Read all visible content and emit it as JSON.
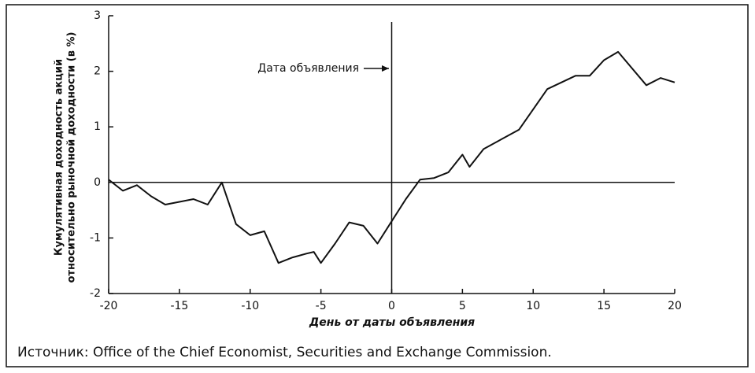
{
  "chart_data": {
    "type": "line",
    "y_label": [
      "Кумулятивная доходность акций",
      "относительно рыночной доходности (в %)"
    ],
    "x_label": "День от даты объявления",
    "annotation": "Дата объявления",
    "source": "Источник: Office of the Chief Economist, Securities and Exchange Commission.",
    "series": [
      {
        "color": "#111111",
        "x": [
          -20,
          -19,
          -18,
          -17,
          -16,
          -15,
          -14,
          -13,
          -12,
          -11,
          -10,
          -9,
          -8,
          -7,
          -6,
          -5.5,
          -5,
          -4,
          -3,
          -2,
          -1,
          0,
          1,
          2,
          3,
          4,
          5,
          5.5,
          6.5,
          9,
          11,
          13,
          14,
          15,
          16,
          18,
          19,
          20
        ],
        "values": [
          0.05,
          -0.15,
          -0.05,
          -0.25,
          -0.4,
          -0.35,
          -0.3,
          -0.4,
          0.0,
          -0.75,
          -0.95,
          -0.88,
          -1.45,
          -1.35,
          -1.28,
          -1.25,
          -1.45,
          -1.1,
          -0.72,
          -0.78,
          -1.1,
          -0.7,
          -0.3,
          0.05,
          0.08,
          0.18,
          0.5,
          0.28,
          0.6,
          0.95,
          1.68,
          1.92,
          1.92,
          2.2,
          2.35,
          1.75,
          1.88,
          1.8
        ]
      }
    ],
    "xlim": [
      -20,
      20
    ],
    "xticks": [
      -20,
      -15,
      -10,
      -5,
      0,
      5,
      10,
      15,
      20
    ],
    "ylim": [
      -2,
      3
    ],
    "yticks": [
      -2,
      -1,
      0,
      1,
      2,
      3
    ]
  }
}
